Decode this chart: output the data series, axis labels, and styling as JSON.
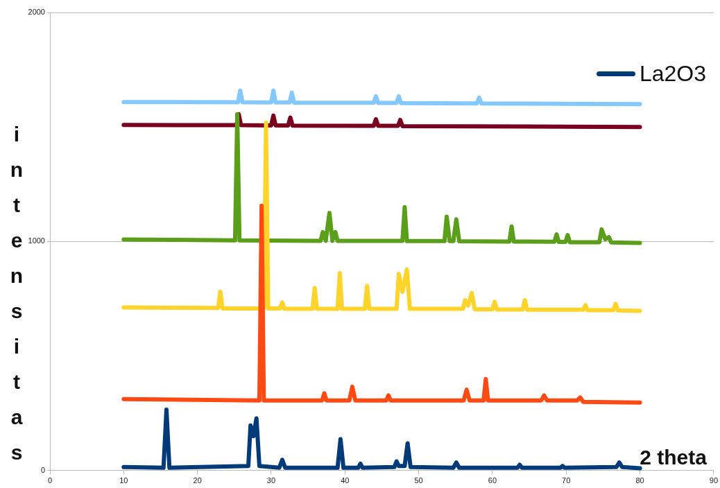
{
  "chart_data": {
    "type": "line",
    "xlabel": "2 theta",
    "ylabel": "intensitas",
    "xlim": [
      0,
      90
    ],
    "xticks": [
      0,
      10,
      20,
      30,
      40,
      50,
      60,
      70,
      80,
      90
    ],
    "ylim": [
      0,
      2000
    ],
    "yticks": [
      0,
      1000,
      2000
    ],
    "grid": "y",
    "legend": "top right",
    "marker": "none",
    "line_style": "solid",
    "series": [
      {
        "name": "La2O3",
        "color": "#003a78",
        "x": [
          10,
          15.4,
          15.8,
          16.2,
          26.9,
          27.2,
          27.6,
          28,
          28.4,
          31.1,
          31.5,
          31.9,
          39,
          39.4,
          39.8,
          41.8,
          42.1,
          42.4,
          46.7,
          47,
          47.3,
          48.1,
          48.5,
          48.9,
          54.7,
          55.1,
          55.5,
          63.4,
          63.7,
          64,
          69.2,
          69.5,
          69.8,
          76.8,
          77.2,
          77.6,
          80
        ],
        "values": [
          15,
          12,
          266,
          12,
          20,
          197,
          150,
          228,
          20,
          12,
          47,
          12,
          12,
          137,
          12,
          12,
          30,
          12,
          15,
          40,
          20,
          20,
          119,
          15,
          12,
          35,
          12,
          12,
          25,
          12,
          12,
          20,
          12,
          15,
          35,
          15,
          10
        ]
      },
      {
        "color": "#ff4a14",
        "x": [
          10,
          28.4,
          28.7,
          29,
          36.9,
          37.2,
          37.5,
          40.6,
          41,
          41.4,
          45.6,
          45.9,
          46.2,
          56.1,
          56.5,
          56.9,
          58.8,
          59.1,
          59.4,
          66.6,
          67,
          67.4,
          71.5,
          71.9,
          72.3,
          80
        ],
        "values": [
          312,
          306,
          1156,
          306,
          306,
          337,
          306,
          306,
          366,
          306,
          306,
          328,
          306,
          306,
          353,
          306,
          306,
          400,
          306,
          306,
          328,
          306,
          306,
          319,
          300,
          297
        ]
      },
      {
        "color": "#ffd42a",
        "x": [
          10,
          22.8,
          23.1,
          23.4,
          29,
          29.3,
          29.6,
          31.2,
          31.5,
          31.8,
          35.6,
          35.9,
          36.2,
          39,
          39.3,
          39.6,
          42.7,
          43,
          43.3,
          47,
          47.3,
          47.8,
          48.4,
          48.8,
          56,
          56.3,
          56.7,
          57.2,
          57.6,
          60,
          60.3,
          60.6,
          64.1,
          64.4,
          64.7,
          72.3,
          72.6,
          72.9,
          76.4,
          76.7,
          77,
          80
        ],
        "values": [
          712,
          710,
          781,
          708,
          708,
          1519,
          708,
          708,
          734,
          706,
          706,
          797,
          706,
          706,
          862,
          706,
          706,
          806,
          706,
          706,
          859,
          780,
          878,
          706,
          706,
          744,
          720,
          775,
          704,
          704,
          737,
          703,
          703,
          744,
          702,
          702,
          722,
          700,
          700,
          728,
          699,
          697
        ]
      },
      {
        "color": "#5a9e1a",
        "x": [
          10,
          25.1,
          25.4,
          25.7,
          36.7,
          37,
          37.4,
          37.9,
          38.3,
          38.7,
          39,
          47.8,
          48.1,
          48.4,
          53.5,
          53.8,
          54.2,
          54.7,
          55.1,
          55.5,
          62.3,
          62.6,
          62.9,
          68.4,
          68.7,
          69,
          69.9,
          70.2,
          70.5,
          74.5,
          74.8,
          75.3,
          75.8,
          76.1,
          80
        ],
        "values": [
          1009,
          1005,
          1556,
          1005,
          1003,
          1041,
          1003,
          1125,
          1003,
          1041,
          1003,
          1003,
          1150,
          1002,
          1002,
          1109,
          1002,
          1002,
          1097,
          1001,
          1000,
          1066,
          1000,
          999,
          1031,
          998,
          998,
          1028,
          997,
          997,
          1053,
          1010,
          1019,
          996,
          994
        ]
      },
      {
        "color": "#7a0020",
        "x": [
          10,
          25.3,
          25.6,
          25.9,
          30,
          30.3,
          30.6,
          32.3,
          32.6,
          32.9,
          43.9,
          44.2,
          44.5,
          47.2,
          47.5,
          47.8,
          80
        ],
        "values": [
          1509,
          1508,
          1556,
          1508,
          1507,
          1550,
          1507,
          1507,
          1541,
          1506,
          1505,
          1534,
          1505,
          1505,
          1531,
          1504,
          1500
        ]
      },
      {
        "color": "#85c8ff",
        "x": [
          10,
          25.5,
          25.8,
          26.1,
          30,
          30.3,
          30.6,
          32.5,
          32.8,
          33.1,
          43.9,
          44.2,
          44.5,
          47,
          47.3,
          47.6,
          57.9,
          58.2,
          58.5,
          80
        ],
        "values": [
          1609,
          1608,
          1659,
          1608,
          1607,
          1659,
          1607,
          1607,
          1650,
          1606,
          1606,
          1634,
          1605,
          1605,
          1634,
          1604,
          1603,
          1628,
          1603,
          1600
        ]
      }
    ]
  }
}
